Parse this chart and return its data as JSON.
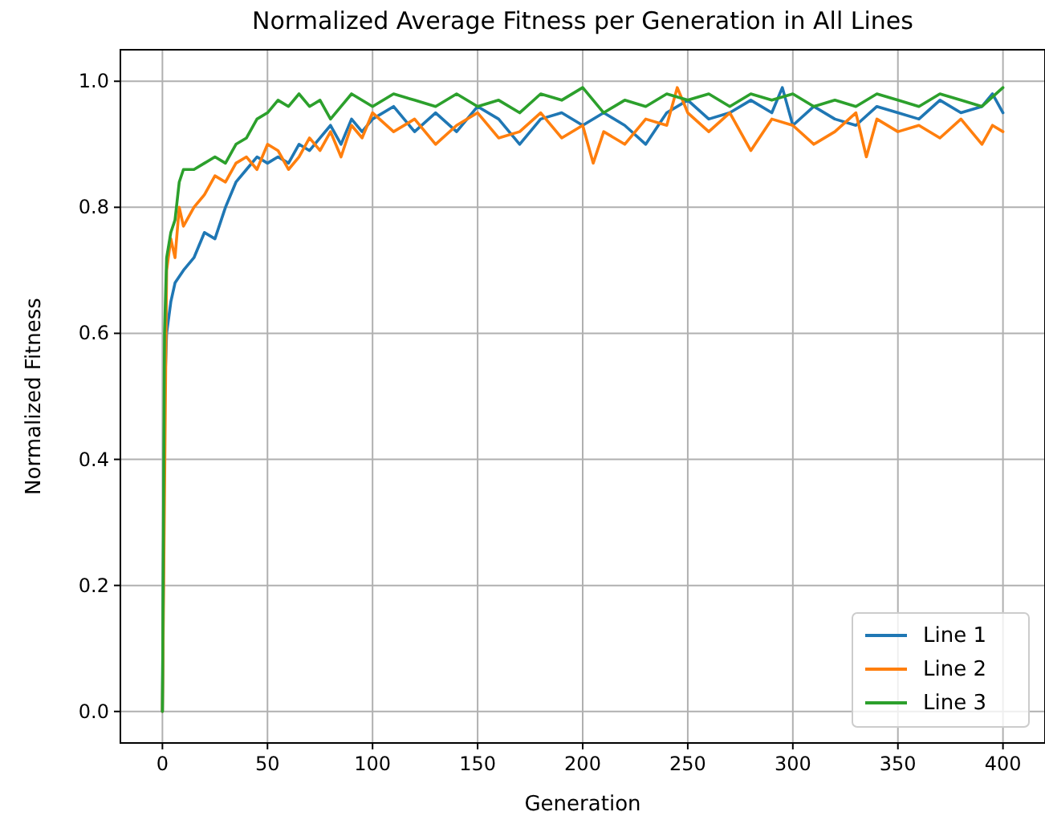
{
  "chart_data": {
    "type": "line",
    "title": "Normalized Average Fitness per Generation in All Lines",
    "xlabel": "Generation",
    "ylabel": "Normalized Fitness",
    "xlim": [
      -20,
      420
    ],
    "ylim": [
      -0.05,
      1.05
    ],
    "xticks": [
      0,
      50,
      100,
      150,
      200,
      250,
      300,
      350,
      400
    ],
    "yticks": [
      {
        "value": 0,
        "label": "0.0"
      },
      {
        "value": 0.2,
        "label": "0.2"
      },
      {
        "value": 0.4,
        "label": "0.4"
      },
      {
        "value": 0.6,
        "label": "0.6"
      },
      {
        "value": 0.8,
        "label": "0.8"
      },
      {
        "value": 1,
        "label": "1.0"
      }
    ],
    "grid": true,
    "legend": "bottom right",
    "line_style": "solid",
    "marker": "none",
    "series": [
      {
        "name": "Line 1",
        "color": "#1f77b4",
        "x": [
          0,
          1,
          2,
          4,
          6,
          10,
          15,
          20,
          25,
          30,
          35,
          40,
          45,
          50,
          55,
          60,
          65,
          70,
          75,
          80,
          85,
          90,
          95,
          100,
          110,
          120,
          130,
          140,
          150,
          160,
          170,
          180,
          190,
          200,
          210,
          220,
          230,
          240,
          250,
          260,
          270,
          280,
          290,
          295,
          300,
          310,
          320,
          330,
          340,
          350,
          360,
          370,
          380,
          390,
          395,
          400
        ],
        "values": [
          0,
          0.5,
          0.6,
          0.65,
          0.68,
          0.7,
          0.72,
          0.76,
          0.75,
          0.8,
          0.84,
          0.86,
          0.88,
          0.87,
          0.88,
          0.87,
          0.9,
          0.89,
          0.91,
          0.93,
          0.9,
          0.94,
          0.92,
          0.94,
          0.96,
          0.92,
          0.95,
          0.92,
          0.96,
          0.94,
          0.9,
          0.94,
          0.95,
          0.93,
          0.95,
          0.93,
          0.9,
          0.95,
          0.97,
          0.94,
          0.95,
          0.97,
          0.95,
          0.99,
          0.93,
          0.96,
          0.94,
          0.93,
          0.96,
          0.95,
          0.94,
          0.97,
          0.95,
          0.96,
          0.98,
          0.95
        ]
      },
      {
        "name": "Line 2",
        "color": "#ff7f0e",
        "x": [
          0,
          2,
          4,
          6,
          8,
          10,
          15,
          20,
          25,
          30,
          35,
          40,
          45,
          50,
          55,
          60,
          65,
          70,
          75,
          80,
          85,
          90,
          95,
          100,
          110,
          120,
          130,
          140,
          150,
          160,
          170,
          180,
          190,
          200,
          205,
          210,
          220,
          230,
          240,
          245,
          250,
          260,
          270,
          280,
          290,
          300,
          310,
          320,
          330,
          335,
          340,
          350,
          360,
          370,
          380,
          390,
          395,
          400
        ],
        "values": [
          0,
          0.7,
          0.75,
          0.72,
          0.8,
          0.77,
          0.8,
          0.82,
          0.85,
          0.84,
          0.87,
          0.88,
          0.86,
          0.9,
          0.89,
          0.86,
          0.88,
          0.91,
          0.89,
          0.92,
          0.88,
          0.93,
          0.91,
          0.95,
          0.92,
          0.94,
          0.9,
          0.93,
          0.95,
          0.91,
          0.92,
          0.95,
          0.91,
          0.93,
          0.87,
          0.92,
          0.9,
          0.94,
          0.93,
          0.99,
          0.95,
          0.92,
          0.95,
          0.89,
          0.94,
          0.93,
          0.9,
          0.92,
          0.95,
          0.88,
          0.94,
          0.92,
          0.93,
          0.91,
          0.94,
          0.9,
          0.93,
          0.92
        ]
      },
      {
        "name": "Line 3",
        "color": "#2ca02c",
        "x": [
          0,
          1,
          2,
          4,
          6,
          8,
          10,
          15,
          20,
          25,
          30,
          35,
          40,
          45,
          50,
          55,
          60,
          65,
          70,
          75,
          80,
          85,
          90,
          100,
          110,
          120,
          130,
          140,
          150,
          160,
          170,
          180,
          190,
          200,
          210,
          220,
          230,
          240,
          250,
          260,
          270,
          280,
          290,
          300,
          310,
          320,
          330,
          340,
          350,
          360,
          370,
          380,
          390,
          400
        ],
        "values": [
          0,
          0.6,
          0.72,
          0.76,
          0.78,
          0.84,
          0.86,
          0.86,
          0.87,
          0.88,
          0.87,
          0.9,
          0.91,
          0.94,
          0.95,
          0.97,
          0.96,
          0.98,
          0.96,
          0.97,
          0.94,
          0.96,
          0.98,
          0.96,
          0.98,
          0.97,
          0.96,
          0.98,
          0.96,
          0.97,
          0.95,
          0.98,
          0.97,
          0.99,
          0.95,
          0.97,
          0.96,
          0.98,
          0.97,
          0.98,
          0.96,
          0.98,
          0.97,
          0.98,
          0.96,
          0.97,
          0.96,
          0.98,
          0.97,
          0.96,
          0.98,
          0.97,
          0.96,
          0.99
        ]
      }
    ]
  }
}
